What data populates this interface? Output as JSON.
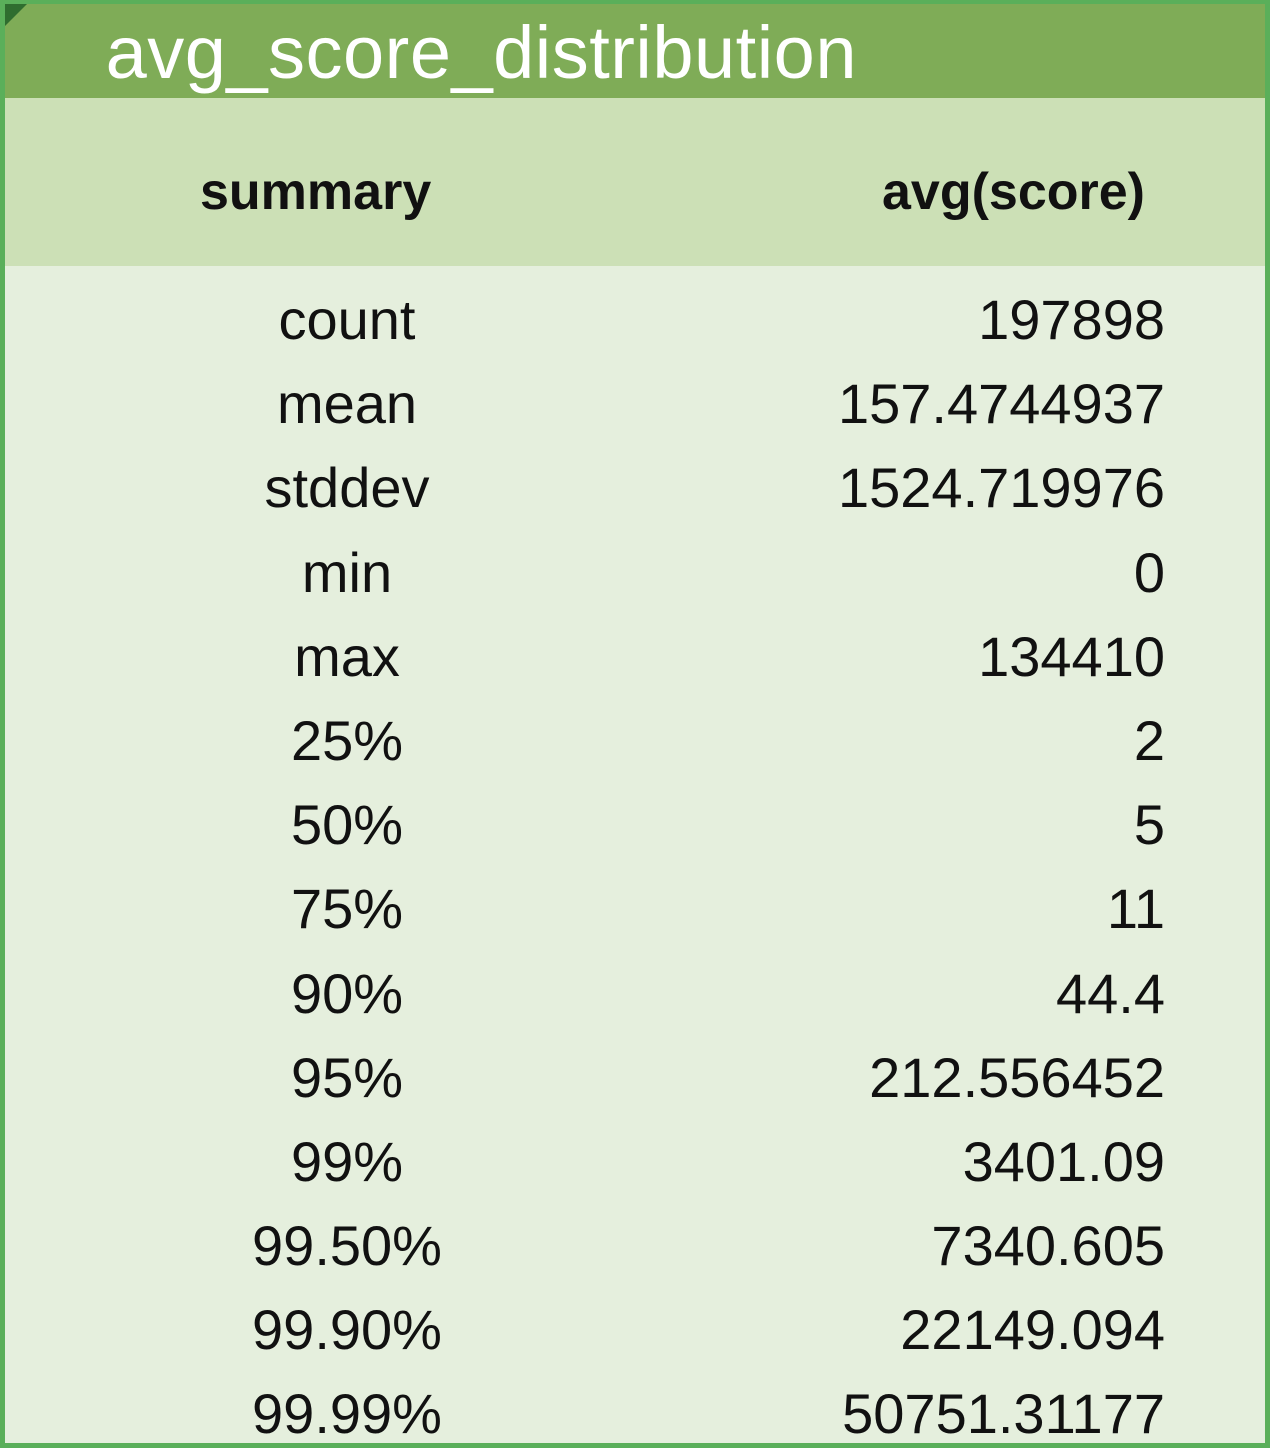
{
  "table": {
    "title": "avg_score_distribution",
    "columns": {
      "summary": "summary",
      "value": "avg(score)"
    },
    "rows": [
      {
        "summary": "count",
        "value": "197898"
      },
      {
        "summary": "mean",
        "value": "157.4744937"
      },
      {
        "summary": "stddev",
        "value": "1524.719976"
      },
      {
        "summary": "min",
        "value": "0"
      },
      {
        "summary": "max",
        "value": "134410"
      },
      {
        "summary": "25%",
        "value": "2"
      },
      {
        "summary": "50%",
        "value": "5"
      },
      {
        "summary": "75%",
        "value": "11"
      },
      {
        "summary": "90%",
        "value": "44.4"
      },
      {
        "summary": "95%",
        "value": "212.556452"
      },
      {
        "summary": "99%",
        "value": "3401.09"
      },
      {
        "summary": "99.50%",
        "value": "7340.605"
      },
      {
        "summary": "99.90%",
        "value": "22149.094"
      },
      {
        "summary": "99.99%",
        "value": "50751.31177"
      }
    ]
  },
  "colors": {
    "border": "#5aaf5a",
    "title_bar": "#7fac57",
    "header_band": "#cce0b6",
    "body": "#e5efdd"
  }
}
